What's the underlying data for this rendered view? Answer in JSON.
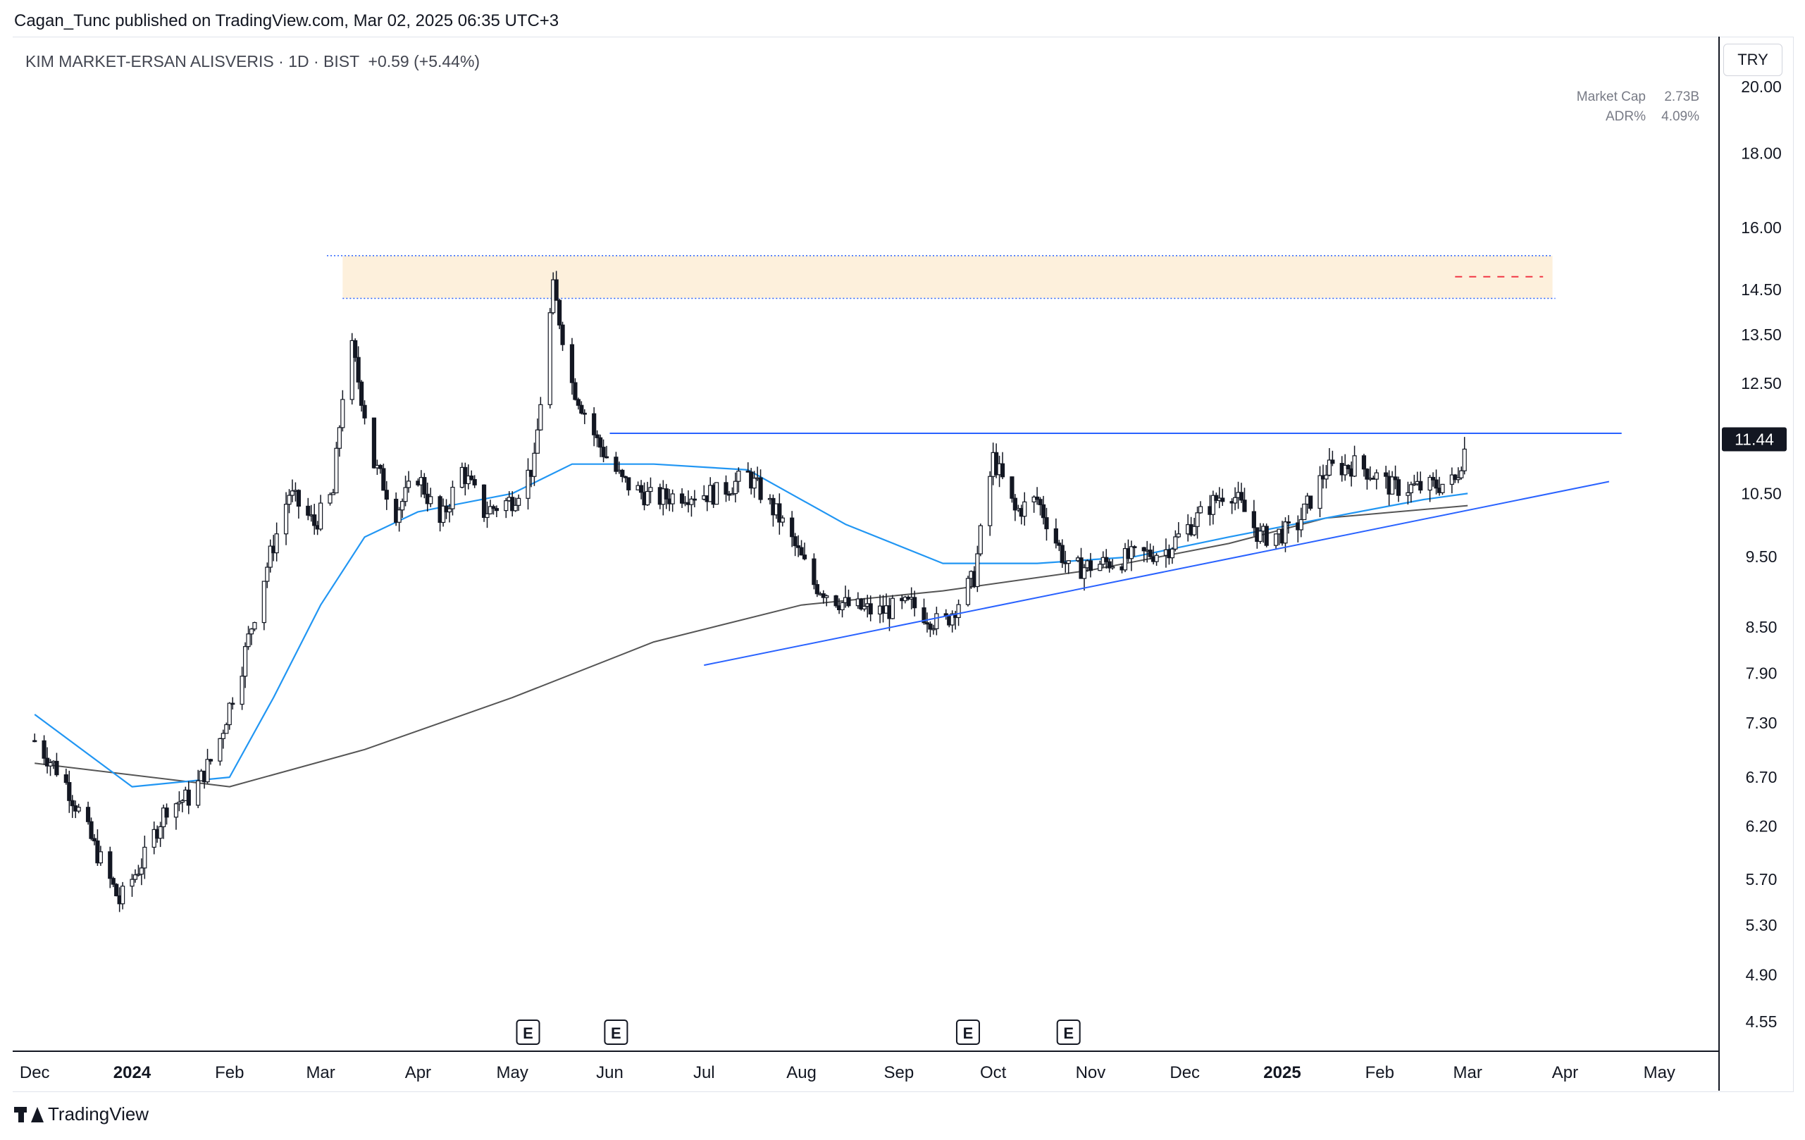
{
  "header": {
    "published_line": "Cagan_Tunc published on TradingView.com, Mar 02, 2025 06:35 UTC+3"
  },
  "legend": {
    "symbol_line": "KIM MARKET-ERSAN ALISVERIS · 1D · BIST",
    "change": "+0.59 (+5.44%)"
  },
  "info_table": {
    "rows": [
      {
        "label": "Market Cap",
        "value": "2.73B"
      },
      {
        "label": "ADR%",
        "value": "4.09%"
      }
    ]
  },
  "currency": "TRY",
  "footer": {
    "brand": "TradingView"
  },
  "colors": {
    "candle": "#131722",
    "ema_fast": "#2196f3",
    "sma_slow": "#555555",
    "trendline": "#2962ff",
    "zone_fill": "#fdf0dc",
    "zone_border": "#2962ff",
    "target_dash": "#f23645",
    "last_price_bg": "#131722"
  },
  "chart_data": {
    "type": "candlestick",
    "y_scale": "log",
    "ylim": [
      4.4,
      21.5
    ],
    "y_ticks": [
      "20.00",
      "18.00",
      "16.00",
      "14.50",
      "13.50",
      "12.50",
      "10.50",
      "9.50",
      "8.50",
      "7.90",
      "7.30",
      "6.70",
      "6.20",
      "5.70",
      "5.30",
      "4.90",
      "4.55"
    ],
    "last_price": "11.44",
    "x_ticks": [
      "Dec",
      "2024",
      "Feb",
      "Mar",
      "Apr",
      "May",
      "Jun",
      "Jul",
      "Aug",
      "Sep",
      "Oct",
      "Nov",
      "Dec",
      "2025",
      "Feb",
      "Mar",
      "Apr",
      "May"
    ],
    "bold_x_ticks": [
      "2024",
      "2025"
    ],
    "earnings_markers": [
      {
        "label": "E",
        "date": "May 2024"
      },
      {
        "label": "E",
        "date": "Jun 2024"
      },
      {
        "label": "E",
        "date": "Sep 2024"
      },
      {
        "label": "E",
        "date": "Oct 2024"
      }
    ],
    "price_path": [
      [
        "2023-12-01",
        7.1
      ],
      [
        "2023-12-10",
        6.7
      ],
      [
        "2023-12-20",
        6.0
      ],
      [
        "2023-12-28",
        5.5
      ],
      [
        "2024-01-05",
        5.9
      ],
      [
        "2024-01-12",
        6.4
      ],
      [
        "2024-01-20",
        6.5
      ],
      [
        "2024-01-28",
        7.0
      ],
      [
        "2024-02-05",
        8.0
      ],
      [
        "2024-02-12",
        9.2
      ],
      [
        "2024-02-20",
        10.5
      ],
      [
        "2024-02-28",
        10.0
      ],
      [
        "2024-03-05",
        10.5
      ],
      [
        "2024-03-10",
        13.5
      ],
      [
        "2024-03-18",
        11.0
      ],
      [
        "2024-03-25",
        10.2
      ],
      [
        "2024-04-01",
        10.8
      ],
      [
        "2024-04-08",
        10.0
      ],
      [
        "2024-04-15",
        10.9
      ],
      [
        "2024-04-22",
        10.2
      ],
      [
        "2024-05-01",
        10.4
      ],
      [
        "2024-05-08",
        11.0
      ],
      [
        "2024-05-14",
        14.5
      ],
      [
        "2024-05-20",
        12.5
      ],
      [
        "2024-05-28",
        11.4
      ],
      [
        "2024-06-05",
        10.7
      ],
      [
        "2024-06-15",
        10.4
      ],
      [
        "2024-06-25",
        10.5
      ],
      [
        "2024-07-05",
        10.5
      ],
      [
        "2024-07-15",
        10.8
      ],
      [
        "2024-07-25",
        10.1
      ],
      [
        "2024-08-05",
        9.1
      ],
      [
        "2024-08-15",
        8.8
      ],
      [
        "2024-08-25",
        8.7
      ],
      [
        "2024-09-05",
        8.8
      ],
      [
        "2024-09-15",
        8.5
      ],
      [
        "2024-09-25",
        9.2
      ],
      [
        "2024-10-01",
        11.1
      ],
      [
        "2024-10-08",
        10.2
      ],
      [
        "2024-10-15",
        10.4
      ],
      [
        "2024-10-25",
        9.3
      ],
      [
        "2024-11-05",
        9.4
      ],
      [
        "2024-11-15",
        9.5
      ],
      [
        "2024-11-25",
        9.6
      ],
      [
        "2024-12-05",
        10.1
      ],
      [
        "2024-12-15",
        10.6
      ],
      [
        "2024-12-25",
        9.8
      ],
      [
        "2025-01-05",
        9.9
      ],
      [
        "2025-01-15",
        10.9
      ],
      [
        "2025-01-25",
        11.0
      ],
      [
        "2025-02-05",
        10.6
      ],
      [
        "2025-02-15",
        10.6
      ],
      [
        "2025-02-25",
        10.7
      ],
      [
        "2025-03-01",
        11.44
      ]
    ],
    "ema_fast": [
      [
        "2023-12-01",
        7.4
      ],
      [
        "2024-01-01",
        6.6
      ],
      [
        "2024-02-01",
        6.7
      ],
      [
        "2024-02-15",
        7.6
      ],
      [
        "2024-03-01",
        8.8
      ],
      [
        "2024-03-15",
        9.8
      ],
      [
        "2024-04-01",
        10.2
      ],
      [
        "2024-05-01",
        10.5
      ],
      [
        "2024-05-20",
        11.0
      ],
      [
        "2024-06-15",
        11.0
      ],
      [
        "2024-07-15",
        10.9
      ],
      [
        "2024-08-15",
        10.0
      ],
      [
        "2024-09-15",
        9.4
      ],
      [
        "2024-10-15",
        9.4
      ],
      [
        "2024-11-15",
        9.5
      ],
      [
        "2024-12-15",
        9.8
      ],
      [
        "2025-01-15",
        10.1
      ],
      [
        "2025-02-15",
        10.4
      ],
      [
        "2025-03-01",
        10.5
      ]
    ],
    "sma_slow": [
      [
        "2023-12-01",
        6.85
      ],
      [
        "2024-02-01",
        6.6
      ],
      [
        "2024-03-15",
        7.0
      ],
      [
        "2024-05-01",
        7.6
      ],
      [
        "2024-06-15",
        8.3
      ],
      [
        "2024-08-01",
        8.8
      ],
      [
        "2024-09-15",
        9.0
      ],
      [
        "2024-11-01",
        9.3
      ],
      [
        "2024-12-15",
        9.7
      ],
      [
        "2025-01-15",
        10.1
      ],
      [
        "2025-03-01",
        10.3
      ]
    ],
    "drawings": {
      "supply_zone": [
        14.3,
        15.3
      ],
      "resistance_line": 11.55,
      "rising_trendline": [
        [
          "2024-07-01",
          8.0
        ],
        [
          "2025-04-15",
          10.7
        ]
      ],
      "target_dash": 14.8
    }
  }
}
